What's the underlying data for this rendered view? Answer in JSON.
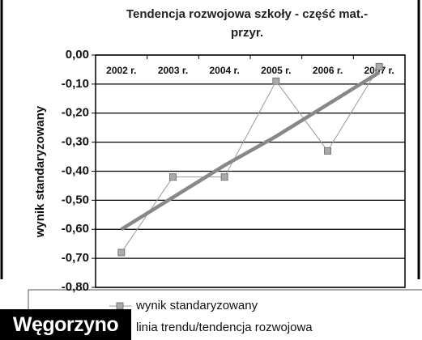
{
  "chart_data": {
    "type": "line",
    "title": "Tendencja rozwojowa szkoły - część mat.-przyr.",
    "y_label": "wynik standaryzowany",
    "categories": [
      "2002 r.",
      "2003 r.",
      "2004 r.",
      "2005 r.",
      "2006 r.",
      "2007 r."
    ],
    "series": [
      {
        "name": "wynik standaryzowany",
        "color": "#999999",
        "values": [
          -0.68,
          -0.42,
          -0.42,
          -0.09,
          -0.33,
          -0.04
        ]
      },
      {
        "name": "linia trendu/tendencja rozwojowa",
        "color": "#888888",
        "values": [
          -0.6,
          -0.49,
          -0.38,
          -0.28,
          -0.17,
          -0.06
        ]
      }
    ],
    "ylim": [
      -0.8,
      0
    ],
    "yticks": [
      {
        "value": 0,
        "label": "0,00"
      },
      {
        "value": -0.1,
        "label": "-0,10"
      },
      {
        "value": -0.2,
        "label": "-0,20"
      },
      {
        "value": -0.3,
        "label": "-0,30"
      },
      {
        "value": -0.4,
        "label": "-0,40"
      },
      {
        "value": -0.5,
        "label": "-0,50"
      },
      {
        "value": -0.6,
        "label": "-0,60"
      },
      {
        "value": -0.7,
        "label": "-0,70"
      },
      {
        "value": -0.8,
        "label": "-0,80"
      }
    ],
    "grid": true,
    "legend": "bottom"
  },
  "label": "Węgorzyno"
}
